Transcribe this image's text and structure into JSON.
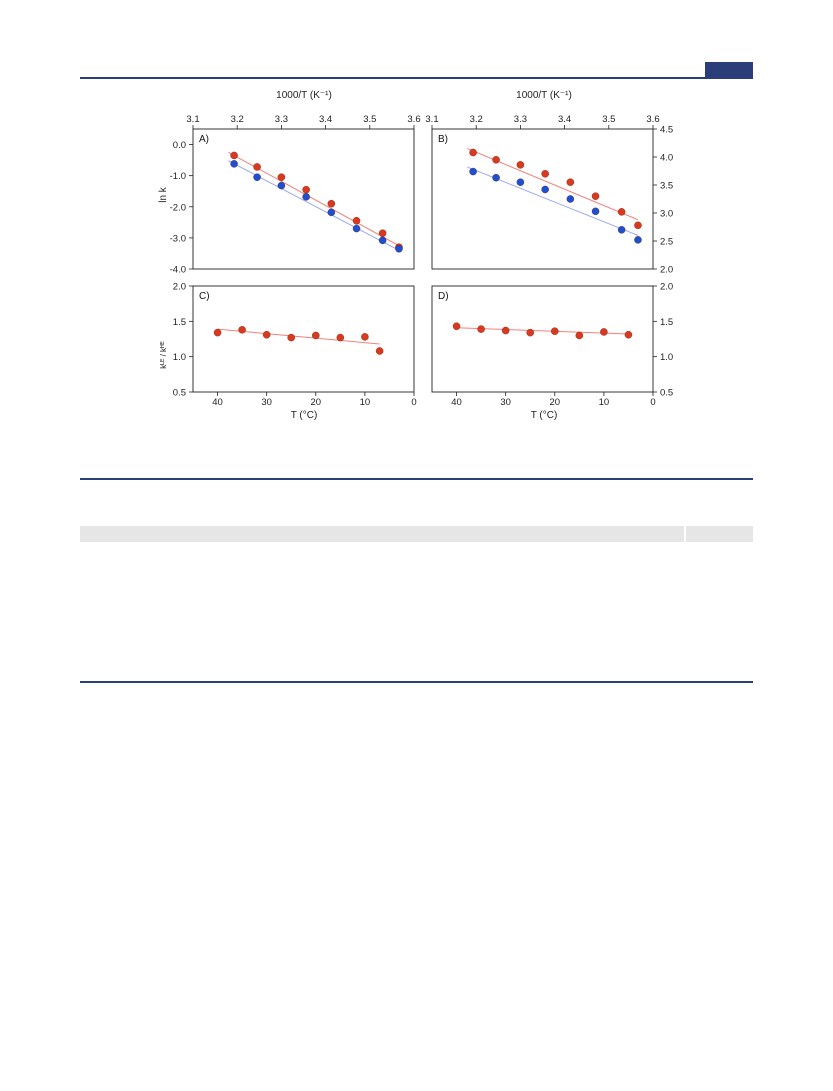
{
  "page": {
    "rule_color": "#2c3e7a"
  },
  "figure": {
    "top_axis_label": "1000/T (K⁻¹)",
    "bottom_axis_label": "T (°C)",
    "y_label_left_top": "ln k",
    "y_label_left_bottom": "kᴸᴱ / kᴴᴱ",
    "series_colors": {
      "red": "#d9391e",
      "blue": "#1f4fd1",
      "red_line": "#f2827a",
      "blue_line": "#9aa6ee"
    }
  },
  "chart_data": [
    {
      "panel": "A)",
      "type": "scatter",
      "x_label": "1000/T (K⁻¹)",
      "y_label": "ln k",
      "xlim": [
        3.1,
        3.6
      ],
      "ylim": [
        -4.0,
        0.5
      ],
      "x_ticks": [
        "3.1",
        "3.2",
        "3.3",
        "3.4",
        "3.5",
        "3.6"
      ],
      "y_ticks": [
        "0.0",
        "-1.0",
        "-2.0",
        "-3.0",
        "-4.0"
      ],
      "series": [
        {
          "color": "red",
          "x": [
            3.193,
            3.245,
            3.3,
            3.356,
            3.413,
            3.47,
            3.529,
            3.566
          ],
          "y": [
            -0.35,
            -0.72,
            -1.05,
            -1.45,
            -1.9,
            -2.45,
            -2.85,
            -3.3
          ],
          "fit": [
            [
              3.18,
              -0.25
            ],
            [
              3.566,
              -3.25
            ]
          ]
        },
        {
          "color": "blue",
          "x": [
            3.193,
            3.245,
            3.3,
            3.356,
            3.413,
            3.47,
            3.529,
            3.566
          ],
          "y": [
            -0.62,
            -1.05,
            -1.32,
            -1.68,
            -2.18,
            -2.7,
            -3.08,
            -3.35
          ],
          "fit": [
            [
              3.18,
              -0.52
            ],
            [
              3.566,
              -3.4
            ]
          ]
        }
      ]
    },
    {
      "panel": "B)",
      "type": "scatter",
      "x_label": "1000/T (K⁻¹)",
      "xlim": [
        3.1,
        3.6
      ],
      "ylim": [
        2.0,
        4.5
      ],
      "x_ticks": [
        "3.1",
        "3.2",
        "3.3",
        "3.4",
        "3.5",
        "3.6"
      ],
      "y_ticks": [
        "4.5",
        "4.0",
        "3.5",
        "3.0",
        "2.5",
        "2.0"
      ],
      "series": [
        {
          "color": "red",
          "x": [
            3.193,
            3.245,
            3.3,
            3.356,
            3.413,
            3.47,
            3.529,
            3.566
          ],
          "y": [
            4.08,
            3.95,
            3.86,
            3.7,
            3.55,
            3.3,
            3.02,
            2.78
          ],
          "fit": [
            [
              3.18,
              4.15
            ],
            [
              3.566,
              2.88
            ]
          ]
        },
        {
          "color": "blue",
          "x": [
            3.193,
            3.245,
            3.3,
            3.356,
            3.413,
            3.47,
            3.529,
            3.566
          ],
          "y": [
            3.74,
            3.63,
            3.55,
            3.42,
            3.25,
            3.03,
            2.7,
            2.52
          ],
          "fit": [
            [
              3.18,
              3.82
            ],
            [
              3.566,
              2.6
            ]
          ]
        }
      ]
    },
    {
      "panel": "C)",
      "type": "scatter",
      "x_label": "T (°C)",
      "y_label": "kᴸᴱ / kᴴᴱ",
      "xlim": [
        45,
        0
      ],
      "ylim": [
        0.5,
        2.0
      ],
      "x_ticks": [
        "40",
        "30",
        "20",
        "10",
        "0"
      ],
      "y_ticks": [
        "2.0",
        "1.5",
        "1.0",
        "0.5"
      ],
      "series": [
        {
          "color": "red",
          "x": [
            40,
            35,
            30,
            25,
            20,
            15,
            10,
            7
          ],
          "y": [
            1.34,
            1.38,
            1.31,
            1.27,
            1.3,
            1.27,
            1.28,
            1.08
          ],
          "fit": [
            [
              40,
              1.39
            ],
            [
              7,
              1.18
            ]
          ]
        }
      ]
    },
    {
      "panel": "D)",
      "type": "scatter",
      "x_label": "T (°C)",
      "xlim": [
        45,
        0
      ],
      "ylim": [
        0.5,
        2.0
      ],
      "x_ticks": [
        "40",
        "30",
        "20",
        "10",
        "0"
      ],
      "y_ticks": [
        "2.0",
        "1.5",
        "1.0",
        "0.5"
      ],
      "series": [
        {
          "color": "red",
          "x": [
            40,
            35,
            30,
            25,
            20,
            15,
            10,
            5
          ],
          "y": [
            1.43,
            1.39,
            1.37,
            1.34,
            1.36,
            1.3,
            1.35,
            1.31
          ],
          "fit": [
            [
              40,
              1.41
            ],
            [
              5,
              1.32
            ]
          ]
        }
      ]
    }
  ]
}
